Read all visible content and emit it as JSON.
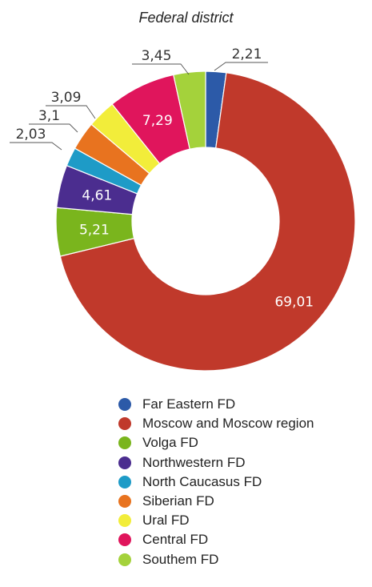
{
  "chart_data": {
    "type": "pie",
    "title": "Federal district",
    "value_format": "comma-decimal",
    "slices": [
      {
        "label": "Far Eastern FD",
        "value": 2.21,
        "color": "#2c5aa8"
      },
      {
        "label": "Moscow and Moscow region",
        "value": 69.01,
        "color": "#c0392b"
      },
      {
        "label": "Volga FD",
        "value": 5.21,
        "color": "#7ab51d"
      },
      {
        "label": "Northwestern FD",
        "value": 4.61,
        "color": "#4b2d8f"
      },
      {
        "label": "North Caucasus FD",
        "value": 2.03,
        "color": "#1e9bc7"
      },
      {
        "label": "Siberian FD",
        "value": 3.1,
        "color": "#e8731f"
      },
      {
        "label": "Ural FD",
        "value": 3.09,
        "color": "#f2ed3a"
      },
      {
        "label": "Central FD",
        "value": 7.29,
        "color": "#e0155c"
      },
      {
        "label": "Southem FD",
        "value": 3.45,
        "color": "#a4d23b"
      }
    ],
    "data_labels": [
      "2,21",
      "69,01",
      "5,21",
      "4,61",
      "2,03",
      "3,1",
      "3,09",
      "7,29",
      "3,45"
    ],
    "legend_position": "bottom"
  }
}
